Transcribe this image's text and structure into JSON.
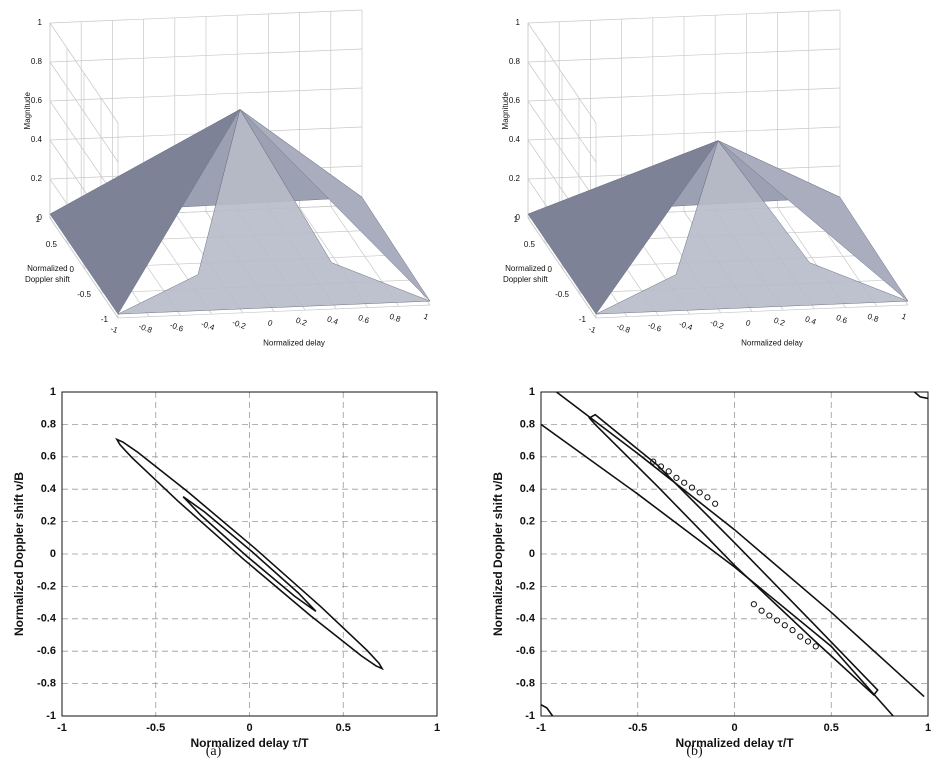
{
  "chart_data": [
    {
      "type": "surface3d",
      "zlabel": "Magnitude",
      "ylabel": [
        "Normalized",
        "Doppler shift"
      ],
      "xlabel": "Normalized delay",
      "xlim": [
        -1,
        1
      ],
      "ylim": [
        -1,
        1
      ],
      "zlim": [
        0,
        1
      ],
      "xticks": [
        -1,
        -0.8,
        -0.6,
        -0.4,
        -0.2,
        0,
        0.2,
        0.4,
        0.6,
        0.8,
        1
      ],
      "yticks": [
        -1,
        -0.5,
        0,
        0.5,
        1
      ],
      "zticks": [
        0,
        0.2,
        0.4,
        0.6,
        0.8,
        1
      ],
      "grid": true,
      "color": "#8a8fa3"
    },
    {
      "type": "surface3d",
      "zlabel": "Magnitude",
      "ylabel": [
        "Normalized",
        "Doppler shift"
      ],
      "xlabel": "Normalized delay",
      "xlim": [
        -1,
        1
      ],
      "ylim": [
        -1,
        1
      ],
      "zlim": [
        0,
        1
      ],
      "xticks": [
        -1,
        -0.8,
        -0.6,
        -0.4,
        -0.2,
        0,
        0.2,
        0.4,
        0.6,
        0.8,
        1
      ],
      "yticks": [
        -1,
        -0.5,
        0,
        0.5,
        1
      ],
      "zticks": [
        0,
        0.2,
        0.4,
        0.6,
        0.8,
        1
      ],
      "grid": true,
      "color": "#8a8fa3"
    },
    {
      "type": "contour",
      "caption": "(a)",
      "xlabel": "Normalized delay τ/T",
      "ylabel": "Normalized Doppler shift ν/B",
      "xlim": [
        -1,
        1
      ],
      "ylim": [
        -1,
        1
      ],
      "xticks": [
        -1,
        -0.5,
        0,
        0.5,
        1
      ],
      "yticks": [
        -1,
        -0.8,
        -0.6,
        -0.4,
        -0.2,
        0,
        0.2,
        0.4,
        0.6,
        0.8,
        1
      ],
      "grid": true,
      "color": "#111111",
      "contours": [
        {
          "closed": true,
          "x": [
            0.707,
            0.691,
            0.628,
            0.381,
            0.032,
            -0.326,
            -0.596,
            -0.675,
            -0.707,
            -0.691,
            -0.628,
            -0.381,
            -0.032,
            0.326,
            0.596,
            0.675
          ],
          "y": [
            -0.707,
            -0.675,
            -0.596,
            -0.326,
            0.032,
            0.381,
            0.628,
            0.691,
            0.707,
            0.675,
            0.596,
            0.326,
            -0.032,
            -0.381,
            -0.628,
            -0.691
          ]
        },
        {
          "closed": true,
          "x": [
            0.354,
            0.26,
            0.014,
            -0.24,
            -0.354,
            -0.26,
            -0.014,
            0.24
          ],
          "y": [
            -0.354,
            -0.24,
            0.014,
            0.26,
            0.354,
            0.24,
            -0.014,
            -0.26
          ]
        }
      ]
    },
    {
      "type": "contour",
      "caption": "(b)",
      "xlabel": "Normalized delay τ/T",
      "ylabel": "Normalized Doppler shift ν/B",
      "xlim": [
        -1,
        1
      ],
      "ylim": [
        -1,
        1
      ],
      "xticks": [
        -1,
        -0.5,
        0,
        0.5,
        1
      ],
      "yticks": [
        -1,
        -0.8,
        -0.6,
        -0.4,
        -0.2,
        0,
        0.2,
        0.4,
        0.6,
        0.8,
        1
      ],
      "grid": true,
      "color": "#111111",
      "contours": [
        {
          "closed": false,
          "x": [
            -0.92,
            -0.5,
            0,
            0.5,
            0.98
          ],
          "y": [
            1,
            0.62,
            0.15,
            -0.36,
            -0.88
          ]
        },
        {
          "closed": false,
          "x": [
            -1,
            -0.5,
            0,
            0.5,
            0.82
          ],
          "y": [
            0.8,
            0.37,
            -0.08,
            -0.57,
            -1
          ]
        },
        {
          "closed": true,
          "x": [
            -0.72,
            -0.4,
            0,
            0.4,
            0.74,
            0.72,
            0.4,
            0,
            -0.4,
            -0.72,
            -0.75
          ],
          "y": [
            0.86,
            0.55,
            0.07,
            -0.42,
            -0.84,
            -0.87,
            -0.52,
            -0.07,
            0.42,
            0.8,
            0.84
          ]
        },
        {
          "closed": false,
          "x": [
            -1,
            -0.97,
            -0.94
          ],
          "y": [
            -0.93,
            -0.95,
            -1
          ]
        },
        {
          "closed": false,
          "x": [
            0.93,
            0.96,
            1
          ],
          "y": [
            1,
            0.97,
            0.96
          ]
        }
      ],
      "markers": {
        "x": [
          -0.42,
          -0.38,
          -0.34,
          -0.3,
          -0.26,
          -0.22,
          -0.18,
          -0.14,
          -0.1,
          0.1,
          0.14,
          0.18,
          0.22,
          0.26,
          0.3,
          0.34,
          0.38,
          0.42
        ],
        "y": [
          0.57,
          0.54,
          0.51,
          0.47,
          0.44,
          0.41,
          0.38,
          0.35,
          0.31,
          -0.31,
          -0.35,
          -0.38,
          -0.41,
          -0.44,
          -0.47,
          -0.51,
          -0.54,
          -0.57
        ]
      }
    }
  ]
}
